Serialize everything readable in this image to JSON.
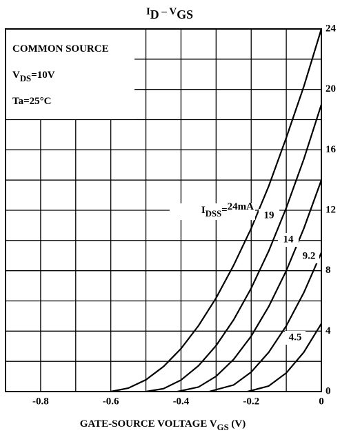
{
  "chart_data": {
    "type": "line",
    "title": [
      "I",
      "D",
      " – V",
      "GS"
    ],
    "xlabel": [
      "GATE-SOURCE VOLTAGE  V",
      "GS",
      "  (V)"
    ],
    "conditions": [
      [
        "COMMON SOURCE"
      ],
      [
        "V",
        "DS",
        "=10V"
      ],
      [
        "Ta=25°C"
      ]
    ],
    "series_label_prefix": [
      "I",
      "DSS",
      "="
    ],
    "xlim": [
      -0.9,
      0
    ],
    "ylim": [
      0,
      24
    ],
    "xticks": [
      -0.8,
      -0.6,
      -0.4,
      -0.2,
      0
    ],
    "yticks": [
      4,
      8,
      12,
      16,
      20,
      24
    ],
    "y0tick": 0,
    "xgrid": [
      -0.8,
      -0.7,
      -0.6,
      -0.5,
      -0.4,
      -0.3,
      -0.2,
      -0.1
    ],
    "ygrid": [
      2,
      4,
      6,
      8,
      10,
      12,
      14,
      16,
      18,
      20,
      22
    ],
    "grid": true,
    "color": "#000000",
    "series": [
      {
        "name": "24mA",
        "x": [
          -0.6,
          -0.55,
          -0.5,
          -0.45,
          -0.4,
          -0.35,
          -0.3,
          -0.25,
          -0.2,
          -0.15,
          -0.1,
          -0.05,
          0
        ],
        "values": [
          0,
          0.23,
          0.78,
          1.65,
          2.84,
          4.36,
          6.19,
          8.36,
          10.8,
          13.6,
          16.8,
          20.2,
          24
        ]
      },
      {
        "name": "19",
        "x": [
          -0.5,
          -0.45,
          -0.4,
          -0.35,
          -0.3,
          -0.25,
          -0.2,
          -0.15,
          -0.1,
          -0.05,
          0
        ],
        "values": [
          0,
          0.19,
          0.76,
          1.71,
          3.04,
          4.75,
          6.84,
          9.31,
          12.16,
          15.39,
          19
        ]
      },
      {
        "name": "14",
        "x": [
          -0.41,
          -0.35,
          -0.3,
          -0.25,
          -0.2,
          -0.15,
          -0.1,
          -0.05,
          0
        ],
        "values": [
          0,
          0.3,
          1.01,
          2.13,
          3.67,
          5.63,
          8.0,
          10.8,
          14
        ]
      },
      {
        "name": "9.2",
        "x": [
          -0.32,
          -0.25,
          -0.2,
          -0.15,
          -0.1,
          -0.05,
          0
        ],
        "values": [
          0,
          0.44,
          1.29,
          2.6,
          4.35,
          6.55,
          9.2
        ]
      },
      {
        "name": "4.5",
        "x": [
          -0.21,
          -0.15,
          -0.1,
          -0.05,
          0
        ],
        "values": [
          0,
          0.37,
          1.23,
          2.61,
          4.5
        ]
      }
    ]
  }
}
